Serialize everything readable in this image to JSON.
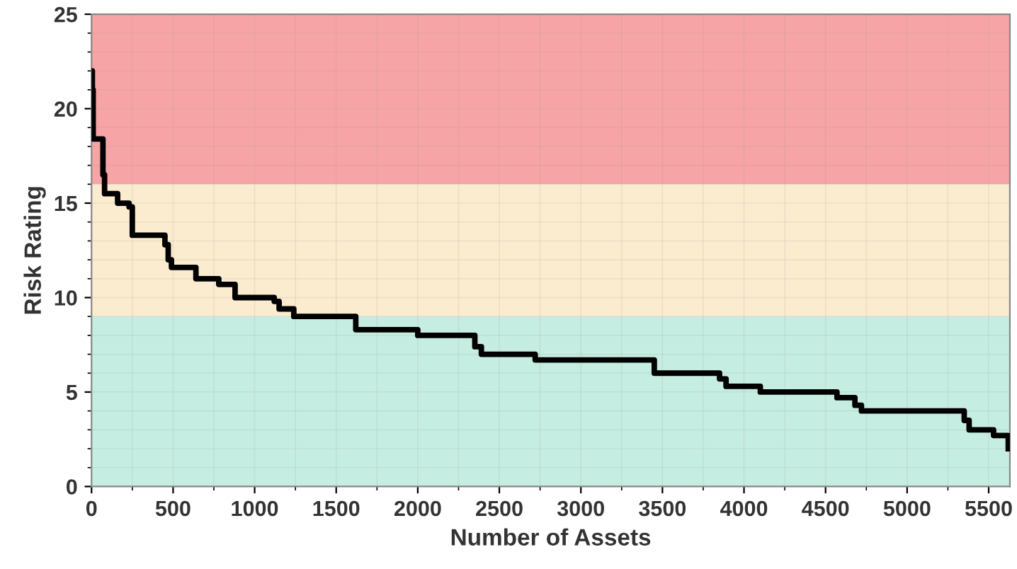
{
  "chart_data": {
    "type": "step",
    "xlabel": "Number of Assets",
    "ylabel": "Risk Rating",
    "xlim": [
      0,
      5630
    ],
    "ylim": [
      0,
      25
    ],
    "xticks": [
      0,
      500,
      1000,
      1500,
      2000,
      2500,
      3000,
      3500,
      4000,
      4500,
      5000,
      5500
    ],
    "yticks": [
      0,
      5,
      10,
      15,
      20,
      25
    ],
    "grid": true,
    "line_style": "solid",
    "marker": "none",
    "bands": [
      {
        "axis": "y",
        "from": 16,
        "to": 25,
        "color": "#f7a4a6"
      },
      {
        "axis": "y",
        "from": 9,
        "to": 16,
        "color": "#fbebcf"
      },
      {
        "axis": "y",
        "from": 0,
        "to": 9,
        "color": "#c6ede1"
      }
    ],
    "series": [
      {
        "color": "#000000",
        "x": [
          0,
          5,
          10,
          70,
          80,
          100,
          160,
          230,
          250,
          450,
          470,
          490,
          520,
          640,
          780,
          880,
          1120,
          1150,
          1240,
          1620,
          2000,
          2350,
          2390,
          2720,
          3450,
          3850,
          3890,
          4100,
          4570,
          4680,
          4720,
          5350,
          5380,
          5530,
          5600,
          5620
        ],
        "values": [
          22,
          21,
          18.4,
          16.5,
          15.5,
          15.5,
          15.0,
          14.8,
          13.3,
          12.8,
          12.0,
          11.6,
          11.6,
          11.0,
          10.7,
          10.0,
          9.8,
          9.4,
          9.0,
          8.3,
          8.0,
          7.4,
          7.0,
          6.7,
          6.0,
          5.7,
          5.3,
          5.0,
          4.7,
          4.3,
          4.0,
          3.5,
          3.0,
          2.7,
          2.7,
          2.0
        ]
      }
    ]
  }
}
